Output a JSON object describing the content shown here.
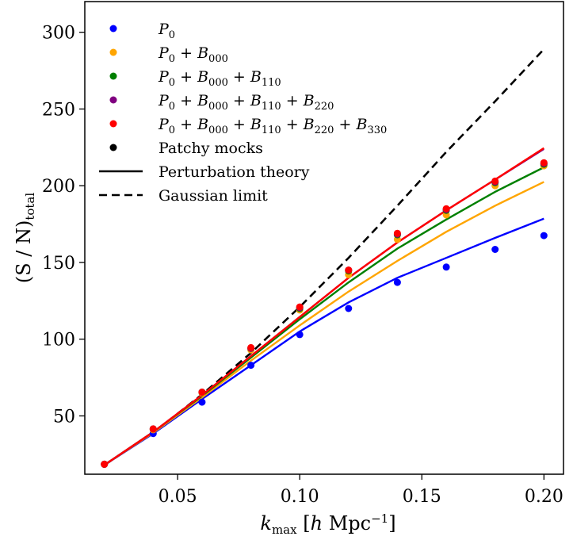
{
  "chart_data": {
    "type": "scatter",
    "xlabel": {
      "main": "k",
      "sub": "max",
      "unit_pre": "h Mpc",
      "unit_sup": "−1"
    },
    "ylabel": {
      "main": "(S / N)",
      "sub": "total"
    },
    "xlim": [
      0.012,
      0.208
    ],
    "ylim": [
      12,
      320
    ],
    "xticks": [
      0.05,
      0.1,
      0.15,
      0.2
    ],
    "xtick_labels": [
      "0.05",
      "0.10",
      "0.15",
      "0.20"
    ],
    "yticks": [
      50,
      100,
      150,
      200,
      250,
      300
    ],
    "ytick_labels": [
      "50",
      "100",
      "150",
      "200",
      "250",
      "300"
    ],
    "legend_position": "top-left",
    "x": [
      0.02,
      0.04,
      0.06,
      0.08,
      0.1,
      0.12,
      0.14,
      0.16,
      0.18,
      0.2
    ],
    "series": [
      {
        "name": "P0",
        "label_parts": [
          [
            "P",
            "0"
          ]
        ],
        "color": "#0000ff",
        "points": [
          18.5,
          38.5,
          59,
          83,
          103,
          120,
          137,
          147,
          158.5,
          167.5
        ],
        "theory": [
          18,
          38.5,
          61,
          83,
          105,
          124,
          140,
          153,
          166,
          178.5
        ]
      },
      {
        "name": "P0 + B000",
        "label_parts": [
          [
            "P",
            "0"
          ],
          [
            "B",
            "000"
          ]
        ],
        "color": "#ffa500",
        "points": [
          18.5,
          41,
          65,
          93,
          119,
          142,
          165,
          181,
          200,
          213
        ],
        "theory": [
          18,
          39,
          62,
          86,
          109,
          131,
          151,
          170,
          187,
          202.5
        ]
      },
      {
        "name": "P0 + B000 + B110",
        "label_parts": [
          [
            "P",
            "0"
          ],
          [
            "B",
            "000"
          ],
          [
            "B",
            "110"
          ]
        ],
        "color": "#008000",
        "points": [
          18.5,
          41.5,
          65.5,
          94,
          120,
          144.5,
          168,
          184,
          202,
          214
        ],
        "theory": [
          18,
          39.5,
          63,
          88,
          113,
          137,
          159,
          178,
          196,
          212
        ]
      },
      {
        "name": "P0 + B000 + B110 + B220",
        "label_parts": [
          [
            "P",
            "0"
          ],
          [
            "B",
            "000"
          ],
          [
            "B",
            "110"
          ],
          [
            "B",
            "220"
          ]
        ],
        "color": "#800080",
        "points": [
          18.5,
          41.5,
          65.5,
          94,
          120.5,
          145,
          168.5,
          184.5,
          202.5,
          214.5
        ],
        "theory": [
          18,
          39.5,
          63.5,
          89,
          114.5,
          140,
          163,
          184,
          204,
          224
        ]
      },
      {
        "name": "P0 + B000 + B110 + B220 + B330",
        "label_parts": [
          [
            "P",
            "0"
          ],
          [
            "B",
            "000"
          ],
          [
            "B",
            "110"
          ],
          [
            "B",
            "220"
          ],
          [
            "B",
            "330"
          ]
        ],
        "color": "#ff0000",
        "points": [
          18.5,
          41.5,
          65.5,
          94.5,
          121,
          145,
          169,
          185,
          203,
          215
        ],
        "theory": [
          18,
          39.5,
          63.5,
          89,
          114.5,
          140,
          163,
          184,
          204,
          224.5
        ]
      }
    ],
    "gaussian_limit": {
      "name": "Gaussian limit",
      "color": "#000000",
      "x": [
        0.02,
        0.04,
        0.06,
        0.08,
        0.1,
        0.12,
        0.14,
        0.16,
        0.18,
        0.2
      ],
      "y": [
        18,
        39,
        64,
        91,
        121,
        153,
        187,
        222,
        255,
        289
      ]
    },
    "legend_extra": [
      {
        "name": "Patchy mocks",
        "kind": "marker",
        "color": "#000000"
      },
      {
        "name": "Perturbation theory",
        "kind": "solid",
        "color": "#000000"
      },
      {
        "name": "Gaussian limit",
        "kind": "dashed",
        "color": "#000000"
      }
    ]
  }
}
